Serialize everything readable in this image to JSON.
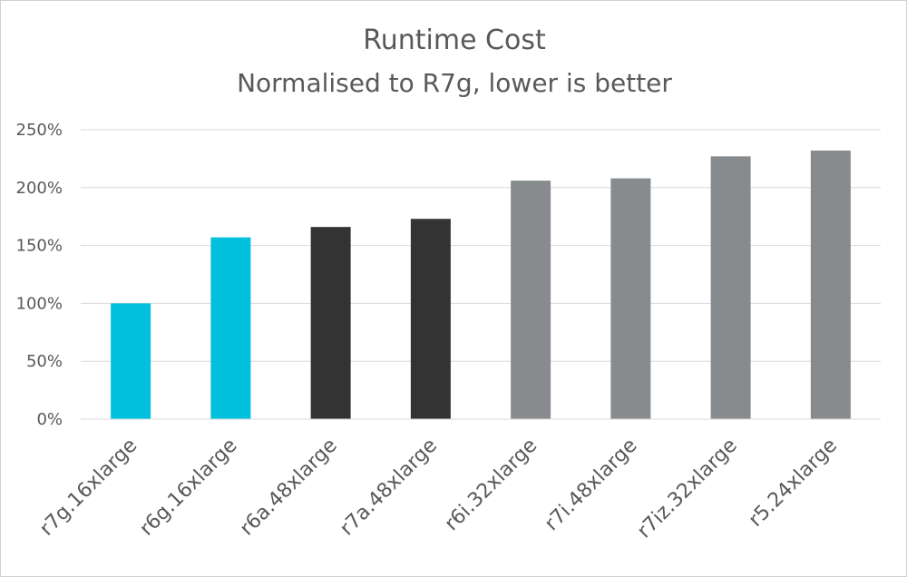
{
  "chart_data": {
    "type": "bar",
    "title": "Runtime Cost",
    "subtitle": "Normalised to R7g, lower is better",
    "xlabel": "",
    "ylabel": "",
    "categories": [
      "r7g.16xlarge",
      "r6g.16xlarge",
      "r6a.48xlarge",
      "r7a.48xlarge",
      "r6i.32xlarge",
      "r7i.48xlarge",
      "r7iz.32xlarge",
      "r5.24xlarge"
    ],
    "values": [
      100,
      157,
      166,
      173,
      206,
      208,
      227,
      232
    ],
    "bar_colors": [
      "#00c0dd",
      "#00c0dd",
      "#333333",
      "#333333",
      "#888b8d",
      "#888b8d",
      "#888b8d",
      "#888b8d"
    ],
    "ylim": [
      0,
      250
    ],
    "yticks": [
      0,
      50,
      100,
      150,
      200,
      250
    ],
    "ytick_labels": [
      "0%",
      "50%",
      "100%",
      "150%",
      "200%",
      "250%"
    ],
    "grid": true,
    "gridline_color": "#d9d9d9",
    "legend": "none"
  }
}
